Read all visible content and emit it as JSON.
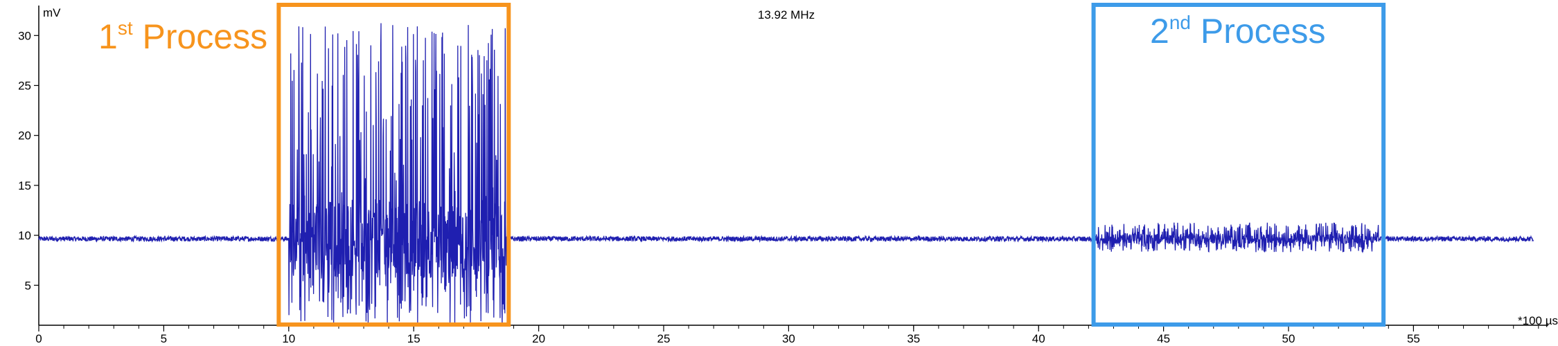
{
  "chart_data": {
    "type": "line",
    "title": "13.92 MHz",
    "ylabel": "mV",
    "xlabel": "*100 µs",
    "xlim": [
      0,
      60
    ],
    "ylim": [
      1,
      33
    ],
    "x_ticks": [
      0,
      5,
      10,
      15,
      20,
      25,
      30,
      35,
      40,
      45,
      50,
      55
    ],
    "y_ticks": [
      5,
      10,
      15,
      20,
      25,
      30
    ],
    "x_tick_labels": [
      "0",
      "5",
      "10",
      "15",
      "20",
      "25",
      "30",
      "35",
      "40",
      "45",
      "50",
      "55"
    ],
    "y_tick_labels": [
      "5",
      "10",
      "15",
      "20",
      "25",
      "30"
    ],
    "grid": false,
    "line_color": "#1f1fb0",
    "signal": {
      "x_start": 0.0,
      "x_end": 59.8,
      "baseline": 9.65,
      "segments": [
        {
          "x_start": 0.0,
          "x_end": 10.0,
          "kind": "baseline",
          "noise": 0.25
        },
        {
          "x_start": 10.0,
          "x_end": 18.7,
          "kind": "burst",
          "min": 1.0,
          "max": 31.3
        },
        {
          "x_start": 18.7,
          "x_end": 42.3,
          "kind": "baseline",
          "noise": 0.25
        },
        {
          "x_start": 42.3,
          "x_end": 53.6,
          "kind": "ripple",
          "min": 8.3,
          "max": 11.3
        },
        {
          "x_start": 53.6,
          "x_end": 59.8,
          "kind": "baseline",
          "noise": 0.25
        }
      ]
    },
    "annotations": [
      {
        "label": "1",
        "sup": "st",
        "text": " Process",
        "color": "#f7941d",
        "x_start": 9.6,
        "x_end": 18.8
      },
      {
        "label": "2",
        "sup": "nd",
        "text": " Process",
        "color": "#3d9be9",
        "x_start": 42.2,
        "x_end": 53.8
      }
    ]
  }
}
